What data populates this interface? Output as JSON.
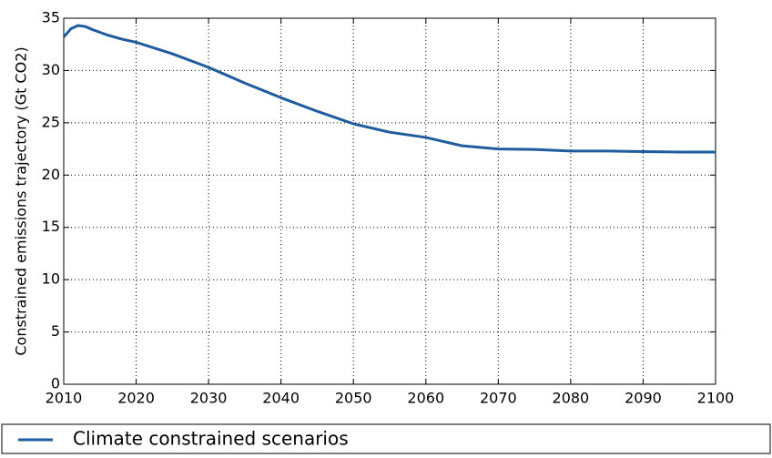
{
  "chart_data": {
    "type": "line",
    "y_label": "Constrained emissions trajectory (Gt CO2)",
    "x": [
      2010,
      2011,
      2012,
      2013,
      2014,
      2016,
      2018,
      2020,
      2025,
      2030,
      2035,
      2040,
      2045,
      2050,
      2055,
      2060,
      2065,
      2070,
      2075,
      2080,
      2085,
      2090,
      2095,
      2100
    ],
    "series": [
      {
        "name": "Climate constrained scenarios",
        "color": "#1f5c9e",
        "values": [
          33.2,
          34.0,
          34.3,
          34.2,
          33.9,
          33.4,
          33.0,
          32.7,
          31.6,
          30.3,
          28.8,
          27.4,
          26.1,
          24.9,
          24.1,
          23.6,
          22.8,
          22.5,
          22.45,
          22.3,
          22.3,
          22.25,
          22.2,
          22.2
        ]
      }
    ],
    "xlim": [
      2010,
      2100
    ],
    "xticks": [
      2010,
      2020,
      2030,
      2040,
      2050,
      2060,
      2070,
      2080,
      2090,
      2100
    ],
    "ylim": [
      0,
      35
    ],
    "yticks": [
      0,
      5,
      10,
      15,
      20,
      25,
      30,
      35
    ],
    "grid": true,
    "legend": "bottom"
  }
}
